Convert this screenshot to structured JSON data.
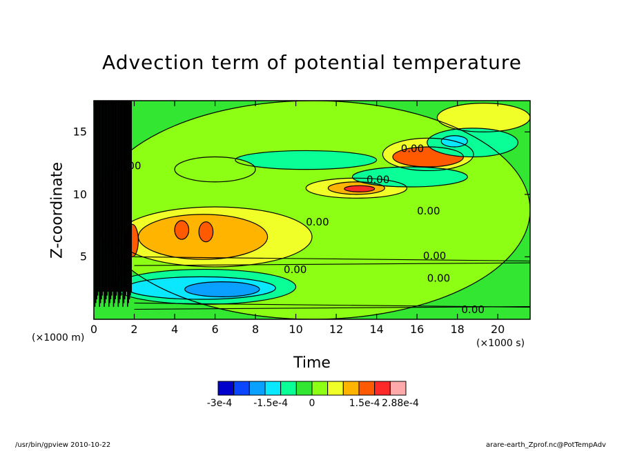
{
  "chart_data": {
    "type": "heatmap",
    "title": "Advection term of potential temperature",
    "xlabel": "Time",
    "ylabel": "Z-coordinate",
    "x_unit": "(×1000 s)",
    "y_unit": "(×1000 m)",
    "xlim": [
      0,
      21.6
    ],
    "ylim": [
      0,
      17.5
    ],
    "xticks": [
      "0",
      "2",
      "4",
      "6",
      "8",
      "10",
      "12",
      "14",
      "16",
      "18",
      "20"
    ],
    "yticks": [
      "5",
      "10",
      "15"
    ],
    "contour_labels": [
      "0.00",
      "0.00",
      "0.00",
      "0.00",
      "0.00",
      "0.00",
      "0.00",
      "0.00",
      "0.00"
    ],
    "colorbar": {
      "labels": [
        "-3e-4",
        "-1.5e-4",
        "0",
        "1.5e-4",
        "2.88e-4"
      ],
      "colors": [
        "#0000cc",
        "#0a46ff",
        "#0aa0ff",
        "#0ae8ff",
        "#0aff96",
        "#32e632",
        "#8cff14",
        "#f0ff28",
        "#ffb400",
        "#ff5a00",
        "#ff2828",
        "#ffaaaa"
      ]
    },
    "regions": [
      {
        "level": 1,
        "x0": 0.1,
        "x1": 21.6,
        "z0": 0.0,
        "z1": 17.5
      },
      {
        "level": 2,
        "x0": 1.2,
        "x1": 10.8,
        "z0": 4.2,
        "z1": 9.0
      },
      {
        "level": 3,
        "x0": 2.2,
        "x1": 8.6,
        "z0": 4.8,
        "z1": 8.4
      },
      {
        "level": 4,
        "x0": 4.0,
        "x1": 4.7,
        "z0": 6.4,
        "z1": 7.9
      },
      {
        "level": 4,
        "x0": 5.2,
        "x1": 5.9,
        "z0": 6.2,
        "z1": 7.8
      },
      {
        "level": 4,
        "x0": 1.6,
        "x1": 2.2,
        "z0": 5.0,
        "z1": 7.6
      },
      {
        "level": 2,
        "x0": 10.5,
        "x1": 15.5,
        "z0": 9.7,
        "z1": 11.3
      },
      {
        "level": 3,
        "x0": 11.6,
        "x1": 14.4,
        "z0": 10.0,
        "z1": 11.0
      },
      {
        "level": 5,
        "x0": 12.4,
        "x1": 13.9,
        "z0": 10.2,
        "z1": 10.7
      },
      {
        "level": 2,
        "x0": 14.3,
        "x1": 18.8,
        "z0": 11.9,
        "z1": 14.5
      },
      {
        "level": 4,
        "x0": 14.8,
        "x1": 18.3,
        "z0": 12.2,
        "z1": 13.8
      },
      {
        "level": 2,
        "x0": 17.0,
        "x1": 21.6,
        "z0": 15.0,
        "z1": 17.3
      },
      {
        "level": -1,
        "x0": 1.0,
        "x1": 10.0,
        "z0": 1.2,
        "z1": 4.0
      },
      {
        "level": -2,
        "x0": 1.6,
        "x1": 9.0,
        "z0": 1.6,
        "z1": 3.4
      },
      {
        "level": -3,
        "x0": 4.5,
        "x1": 8.2,
        "z0": 1.8,
        "z1": 3.0
      },
      {
        "level": -1,
        "x0": 12.8,
        "x1": 18.5,
        "z0": 10.6,
        "z1": 12.2
      },
      {
        "level": -1,
        "x0": 7.0,
        "x1": 14.0,
        "z0": 12.0,
        "z1": 13.5
      },
      {
        "level": -1,
        "x0": 16.5,
        "x1": 21.0,
        "z0": 13.0,
        "z1": 15.3
      },
      {
        "level": -2,
        "x0": 17.2,
        "x1": 18.5,
        "z0": 13.8,
        "z1": 14.7
      },
      {
        "level": 1,
        "x0": 4.0,
        "x1": 8.0,
        "z0": 11.0,
        "z1": 13.0
      }
    ]
  },
  "footer": {
    "left": "/usr/bin/gpview   2010-10-22",
    "right": "arare-earth_Zprof.nc@PotTempAdv"
  }
}
